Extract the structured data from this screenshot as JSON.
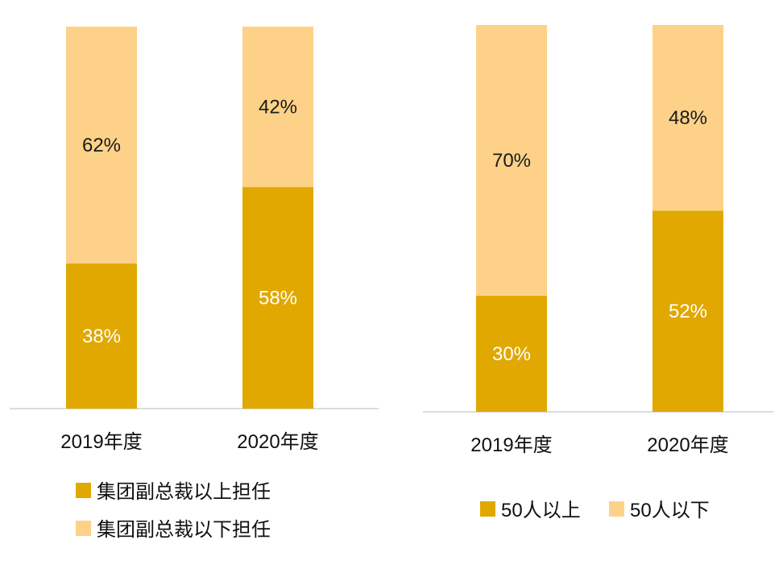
{
  "chart_data": [
    {
      "type": "bar",
      "stacked": true,
      "normalized_percent": true,
      "categories": [
        "2019年度",
        "2020年度"
      ],
      "series": [
        {
          "name": "集团副总裁以上担任",
          "values": [
            38,
            58
          ],
          "labels": [
            "38%",
            "58%"
          ]
        },
        {
          "name": "集团副总裁以下担任",
          "values": [
            62,
            42
          ],
          "labels": [
            "62%",
            "42%"
          ]
        }
      ],
      "ylim": [
        0,
        100
      ],
      "grid": false,
      "legend_position": "bottom"
    },
    {
      "type": "bar",
      "stacked": true,
      "normalized_percent": true,
      "categories": [
        "2019年度",
        "2020年度"
      ],
      "series": [
        {
          "name": "50人以上",
          "values": [
            30,
            52
          ],
          "labels": [
            "30%",
            "52%"
          ]
        },
        {
          "name": "50人以下",
          "values": [
            70,
            48
          ],
          "labels": [
            "70%",
            "48%"
          ]
        }
      ],
      "ylim": [
        0,
        100
      ],
      "grid": false,
      "legend_position": "bottom"
    }
  ],
  "colors": {
    "dark": "#e0a800",
    "light": "#fdd288",
    "axis": "#d0d0d0"
  }
}
